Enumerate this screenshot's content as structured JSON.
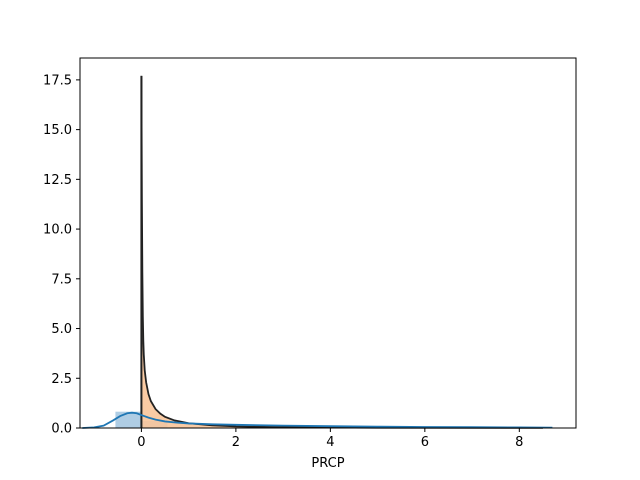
{
  "chart_data": {
    "type": "area",
    "title": "",
    "xlabel": "PRCP",
    "ylabel": "",
    "xlim": [
      -1.3,
      9.2
    ],
    "ylim": [
      0,
      18.6
    ],
    "x_ticks": [
      {
        "value": 0,
        "label": "0"
      },
      {
        "value": 2,
        "label": "2"
      },
      {
        "value": 4,
        "label": "4"
      },
      {
        "value": 6,
        "label": "6"
      },
      {
        "value": 8,
        "label": "8"
      }
    ],
    "y_ticks": [
      {
        "value": 0,
        "label": "0.0"
      },
      {
        "value": 2.5,
        "label": "2.5"
      },
      {
        "value": 5,
        "label": "5.0"
      },
      {
        "value": 7.5,
        "label": "7.5"
      },
      {
        "value": 10,
        "label": "10.0"
      },
      {
        "value": 12.5,
        "label": "12.5"
      },
      {
        "value": 15,
        "label": "15.0"
      },
      {
        "value": 17.5,
        "label": "17.5"
      }
    ],
    "grid": false,
    "colors": {
      "blue_hist": "#a6c8e1",
      "blue_line": "#1f77b4",
      "orange_fill": "#f9c59a",
      "black_line": "#222222"
    },
    "series": [
      {
        "kind": "histogram",
        "color": "blue",
        "bins": [
          {
            "x0": -0.55,
            "x1": 0.0,
            "height": 0.82
          },
          {
            "x0": 0.0,
            "x1": 0.55,
            "height": 0.35
          }
        ]
      },
      {
        "kind": "kde",
        "color": "blue",
        "x": [
          -1.25,
          -1.0,
          -0.8,
          -0.6,
          -0.45,
          -0.3,
          -0.2,
          -0.1,
          0.0,
          0.15,
          0.3,
          0.5,
          0.75,
          1.0,
          1.5,
          2.0,
          3.0,
          4.0,
          5.0,
          6.0,
          7.0,
          8.0,
          8.7
        ],
        "y": [
          0.0,
          0.03,
          0.12,
          0.38,
          0.6,
          0.74,
          0.77,
          0.74,
          0.65,
          0.52,
          0.42,
          0.33,
          0.27,
          0.23,
          0.19,
          0.16,
          0.12,
          0.09,
          0.07,
          0.05,
          0.04,
          0.03,
          0.02
        ]
      },
      {
        "kind": "density",
        "color": "orange",
        "x": [
          0.0,
          0.01,
          0.02,
          0.03,
          0.04,
          0.05,
          0.07,
          0.1,
          0.15,
          0.2,
          0.3,
          0.4,
          0.5,
          0.7,
          1.0,
          1.5,
          2.0,
          3.0,
          5.0,
          8.5
        ],
        "y": [
          17.7,
          11.5,
          7.8,
          5.6,
          4.4,
          3.7,
          2.9,
          2.3,
          1.7,
          1.35,
          0.95,
          0.72,
          0.56,
          0.38,
          0.24,
          0.13,
          0.08,
          0.04,
          0.015,
          0.005
        ]
      }
    ]
  }
}
